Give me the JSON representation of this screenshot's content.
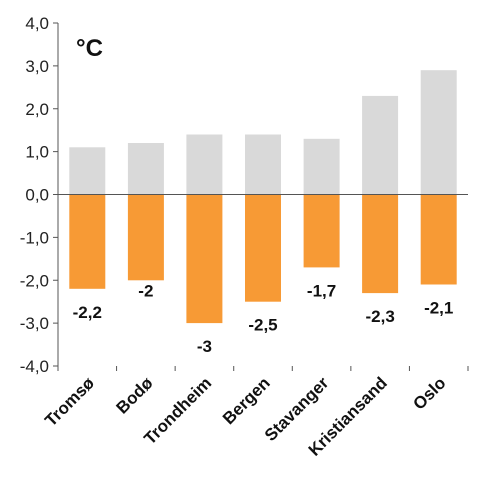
{
  "chart_data": {
    "type": "bar",
    "unit_label": "°C",
    "categories": [
      "Tromsø",
      "Bodø",
      "Trondheim",
      "Bergen",
      "Stavanger",
      "Kristiansand",
      "Oslo"
    ],
    "series": [
      {
        "values": [
          1.1,
          1.2,
          1.4,
          1.4,
          1.3,
          2.3,
          2.9
        ],
        "color": "#d9d9d9"
      },
      {
        "values": [
          -2.2,
          -2.0,
          -3.0,
          -2.5,
          -1.7,
          -2.3,
          -2.1
        ],
        "color": "#f79a35"
      }
    ],
    "data_labels": [
      "-2,2",
      "-2",
      "-3",
      "-2,5",
      "-1,7",
      "-2,3",
      "-2,1"
    ],
    "y_ticks": [
      "-4,0",
      "-3,0",
      "-2,0",
      "-1,0",
      "0,0",
      "1,0",
      "2,0",
      "3,0",
      "4,0"
    ],
    "ylim": [
      -4,
      4
    ],
    "grid": false,
    "legend": "none"
  }
}
